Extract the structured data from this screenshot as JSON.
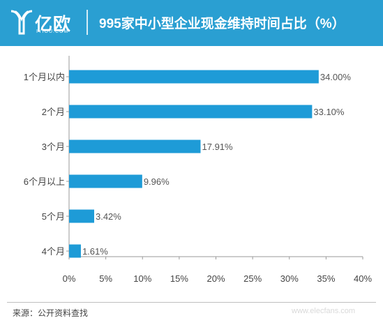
{
  "header": {
    "logo_text": "亿欧",
    "logo_sub": "IYIOU.COM",
    "title": "995家中小型企业现金维持时间占比（%）",
    "background_color": "#2a9fd2"
  },
  "chart_data": {
    "type": "bar",
    "orientation": "horizontal",
    "title": "995家中小型企业现金维持时间占比（%）",
    "categories": [
      "1个月以内",
      "2个月",
      "3个月",
      "6个月以上",
      "5个月",
      "4个月"
    ],
    "values": [
      34.0,
      33.1,
      17.91,
      9.96,
      3.42,
      1.61
    ],
    "value_labels": [
      "34.00%",
      "33.10%",
      "17.91%",
      "9.96%",
      "3.42%",
      "1.61%"
    ],
    "x_ticks": [
      "0%",
      "5%",
      "10%",
      "15%",
      "20%",
      "25%",
      "30%",
      "35%",
      "40%"
    ],
    "xlim": [
      0,
      40
    ],
    "grid": false,
    "bar_color": "#1e9bd7"
  },
  "footer": {
    "source": "来源：公开资料查找",
    "watermark": "www.elecfans.com"
  }
}
